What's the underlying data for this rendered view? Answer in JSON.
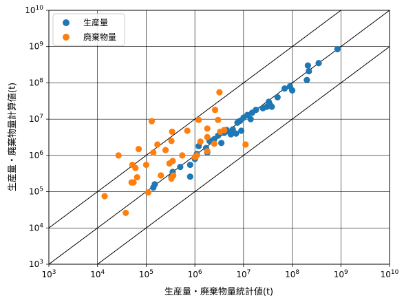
{
  "chart_data": {
    "type": "scatter",
    "xlabel": "生産量・廃棄物量統計値(t)",
    "ylabel": "生産量・廃棄物量計算値(t)",
    "xscale": "log",
    "yscale": "log",
    "xlim": [
      1000,
      10000000000
    ],
    "ylim": [
      1000,
      10000000000
    ],
    "grid": true,
    "legend_position": "top-left",
    "tick_exponents": [
      3,
      4,
      5,
      6,
      7,
      8,
      9,
      10
    ],
    "tick_base": "10",
    "reference_lines": [
      {
        "ratio": 10
      },
      {
        "ratio": 1
      },
      {
        "ratio": 0.1
      }
    ],
    "series": [
      {
        "name": "生産量",
        "color": "#1f77b4",
        "points": [
          [
            140000,
            130000
          ],
          [
            150000,
            160000
          ],
          [
            330000,
            250000
          ],
          [
            350000,
            350000
          ],
          [
            500000,
            480000
          ],
          [
            800000,
            550000
          ],
          [
            800000,
            260000
          ],
          [
            1000000,
            800000
          ],
          [
            1100000,
            1100000
          ],
          [
            1200000,
            1800000
          ],
          [
            1700000,
            1600000
          ],
          [
            1800000,
            1200000
          ],
          [
            2000000,
            2500000
          ],
          [
            2500000,
            2800000
          ],
          [
            3000000,
            3500000
          ],
          [
            3500000,
            2200000
          ],
          [
            4000000,
            4200000
          ],
          [
            4500000,
            5000000
          ],
          [
            5000000,
            4500000
          ],
          [
            5500000,
            3800000
          ],
          [
            6000000,
            5200000
          ],
          [
            7000000,
            4000000
          ],
          [
            7500000,
            8000000
          ],
          [
            8500000,
            9000000
          ],
          [
            9000000,
            4800000
          ],
          [
            10000000,
            11000000
          ],
          [
            12000000,
            13000000
          ],
          [
            14000000,
            10000000
          ],
          [
            15000000,
            15000000
          ],
          [
            18000000,
            18000000
          ],
          [
            25000000,
            20000000
          ],
          [
            30000000,
            22000000
          ],
          [
            33000000,
            30000000
          ],
          [
            35000000,
            25000000
          ],
          [
            38000000,
            22000000
          ],
          [
            50000000,
            40000000
          ],
          [
            70000000,
            70000000
          ],
          [
            90000000,
            80000000
          ],
          [
            100000000,
            62000000
          ],
          [
            200000000,
            120000000
          ],
          [
            210000000,
            300000000
          ],
          [
            220000000,
            210000000
          ],
          [
            350000000,
            350000000
          ],
          [
            850000000,
            850000000
          ]
        ]
      },
      {
        "name": "廃棄物量",
        "color": "#ff7f0e",
        "points": [
          [
            14000,
            75000
          ],
          [
            27000,
            1000000
          ],
          [
            38000,
            26000
          ],
          [
            50000,
            180000
          ],
          [
            52000,
            550000
          ],
          [
            55000,
            180000
          ],
          [
            60000,
            450000
          ],
          [
            65000,
            250000
          ],
          [
            70000,
            1500000
          ],
          [
            100000,
            550000
          ],
          [
            110000,
            95000
          ],
          [
            130000,
            8800000
          ],
          [
            140000,
            1200000
          ],
          [
            170000,
            2000000
          ],
          [
            200000,
            280000
          ],
          [
            250000,
            1400000
          ],
          [
            300000,
            600000
          ],
          [
            330000,
            230000
          ],
          [
            330000,
            2500000
          ],
          [
            340000,
            4500000
          ],
          [
            350000,
            700000
          ],
          [
            360000,
            280000
          ],
          [
            550000,
            1000000
          ],
          [
            700000,
            4800000
          ],
          [
            1000000,
            900000
          ],
          [
            1100000,
            1000000
          ],
          [
            1200000,
            9500000
          ],
          [
            1300000,
            2400000
          ],
          [
            1800000,
            5500000
          ],
          [
            1800000,
            3200000
          ],
          [
            1800000,
            1300000
          ],
          [
            2500000,
            2100000
          ],
          [
            2600000,
            18000000
          ],
          [
            3000000,
            9500000
          ],
          [
            3200000,
            55000000
          ],
          [
            3300000,
            4500000
          ],
          [
            4000000,
            5000000
          ],
          [
            11000000,
            2000000
          ]
        ]
      }
    ]
  }
}
